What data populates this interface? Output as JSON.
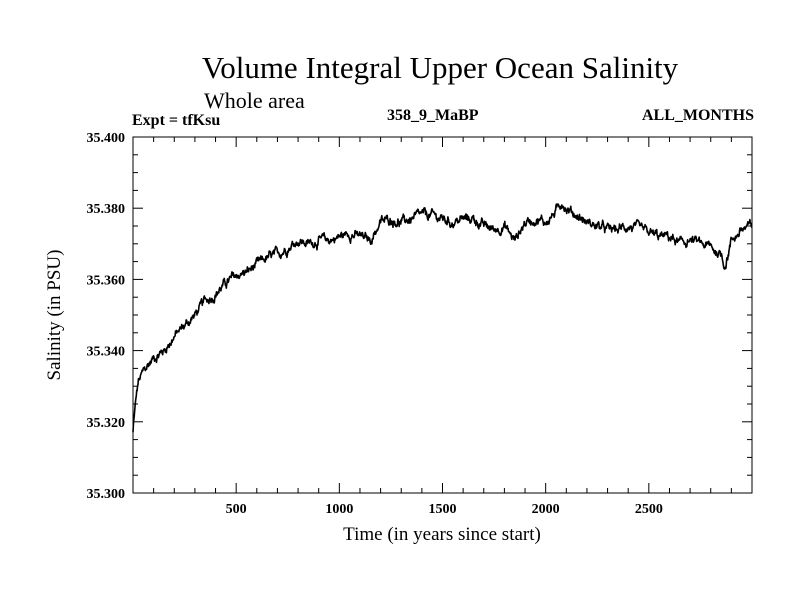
{
  "header": {
    "title": "Volume Integral Upper Ocean Salinity",
    "subtitle": "Whole area",
    "experiment": "Expt = tfKsu",
    "run_id": "358_9_MaBP",
    "months": "ALL_MONTHS"
  },
  "chart_data": {
    "type": "line",
    "title": "Volume Integral Upper Ocean Salinity",
    "subtitle": "Whole area",
    "xlabel": "Time (in years since start)",
    "ylabel": "Salinity (in PSU)",
    "xlim": [
      0,
      3000
    ],
    "ylim": [
      35.3,
      35.4
    ],
    "x_ticks": [
      500,
      1000,
      1500,
      2000,
      2500
    ],
    "x_tick_labels": [
      "500",
      "1000",
      "1500",
      "2000",
      "2500"
    ],
    "y_ticks": [
      35.3,
      35.32,
      35.34,
      35.36,
      35.38,
      35.4
    ],
    "y_tick_labels": [
      "35.300",
      "35.320",
      "35.340",
      "35.360",
      "35.380",
      "35.400"
    ],
    "grid": false,
    "series": [
      {
        "name": "Salinity",
        "color": "#000000",
        "x": [
          0,
          10,
          25,
          50,
          75,
          100,
          150,
          200,
          250,
          300,
          350,
          400,
          450,
          500,
          550,
          600,
          650,
          700,
          750,
          800,
          850,
          900,
          950,
          1000,
          1050,
          1100,
          1150,
          1200,
          1250,
          1300,
          1350,
          1400,
          1450,
          1500,
          1550,
          1600,
          1650,
          1700,
          1750,
          1800,
          1850,
          1900,
          1950,
          2000,
          2050,
          2080,
          2100,
          2150,
          2200,
          2250,
          2300,
          2350,
          2400,
          2450,
          2500,
          2550,
          2600,
          2650,
          2700,
          2750,
          2800,
          2850,
          2870,
          2900,
          2950,
          3000
        ],
        "values": [
          35.317,
          35.324,
          35.331,
          35.334,
          35.336,
          35.338,
          35.34,
          35.344,
          35.347,
          35.35,
          35.354,
          35.356,
          35.359,
          35.361,
          35.362,
          35.364,
          35.366,
          35.367,
          35.369,
          35.371,
          35.37,
          35.371,
          35.371,
          35.372,
          35.373,
          35.372,
          35.371,
          35.376,
          35.377,
          35.376,
          35.377,
          35.378,
          35.378,
          35.377,
          35.376,
          35.377,
          35.377,
          35.375,
          35.374,
          35.375,
          35.371,
          35.376,
          35.377,
          35.376,
          35.379,
          35.382,
          35.38,
          35.378,
          35.376,
          35.375,
          35.374,
          35.374,
          35.375,
          35.374,
          35.373,
          35.372,
          35.372,
          35.37,
          35.371,
          35.37,
          35.369,
          35.367,
          35.364,
          35.371,
          35.374,
          35.375
        ]
      }
    ]
  }
}
